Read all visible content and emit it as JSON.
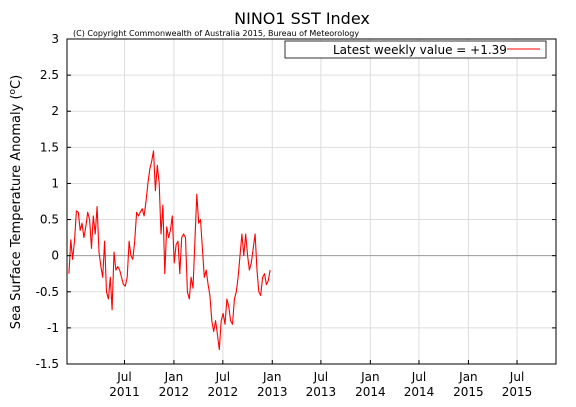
{
  "chart_data": {
    "type": "line",
    "title": "NINO1 SST Index",
    "copyright": "(C) Copyright Commonwealth of Australia 2015, Bureau of Meteorology",
    "ylabel": "Sea Surface Temperature Anomaly (°C)",
    "ylabel_main": "Sea Surface Temperature Anomaly (",
    "ylabel_unit": "C)",
    "ylabel_degree": "o",
    "xlabel": "",
    "ylim": [
      -1.5,
      3
    ],
    "y_ticks": [
      -1.5,
      -1,
      -0.5,
      0,
      0.5,
      1,
      1.5,
      2,
      2.5,
      3
    ],
    "y_tick_labels": [
      "-1.5",
      "-1",
      "-0.5",
      "0",
      "0.5",
      "1",
      "1.5",
      "2",
      "2.5",
      "3"
    ],
    "x_range": [
      "2010-11-29",
      "2015-11-23"
    ],
    "x_ticks": [
      {
        "date": "2011-07-01",
        "month": "Jul",
        "year": "2011"
      },
      {
        "date": "2012-01-01",
        "month": "Jan",
        "year": "2012"
      },
      {
        "date": "2012-07-01",
        "month": "Jul",
        "year": "2012"
      },
      {
        "date": "2013-01-01",
        "month": "Jan",
        "year": "2013"
      },
      {
        "date": "2013-07-01",
        "month": "Jul",
        "year": "2013"
      },
      {
        "date": "2014-01-01",
        "month": "Jan",
        "year": "2014"
      },
      {
        "date": "2014-07-01",
        "month": "Jul",
        "year": "2014"
      },
      {
        "date": "2015-01-01",
        "month": "Jan",
        "year": "2015"
      },
      {
        "date": "2015-07-01",
        "month": "Jul",
        "year": "2015"
      }
    ],
    "grid": true,
    "legend_position": "top-right",
    "series": [
      {
        "name": "Latest weekly value = +1.39",
        "color": "#ff0000",
        "points": [
          [
            "2010-12-06",
            -0.25
          ],
          [
            "2010-12-13",
            0.22
          ],
          [
            "2010-12-20",
            -0.05
          ],
          [
            "2010-12-27",
            0.2
          ],
          [
            "2011-01-03",
            0.62
          ],
          [
            "2011-01-10",
            0.6
          ],
          [
            "2011-01-17",
            0.35
          ],
          [
            "2011-01-24",
            0.45
          ],
          [
            "2011-01-31",
            0.25
          ],
          [
            "2011-02-07",
            0.4
          ],
          [
            "2011-02-14",
            0.6
          ],
          [
            "2011-02-21",
            0.5
          ],
          [
            "2011-02-28",
            0.1
          ],
          [
            "2011-03-07",
            0.55
          ],
          [
            "2011-03-14",
            0.3
          ],
          [
            "2011-03-21",
            0.68
          ],
          [
            "2011-03-28",
            0.05
          ],
          [
            "2011-04-04",
            -0.15
          ],
          [
            "2011-04-11",
            -0.3
          ],
          [
            "2011-04-18",
            0.2
          ],
          [
            "2011-04-25",
            -0.5
          ],
          [
            "2011-05-02",
            -0.6
          ],
          [
            "2011-05-09",
            -0.3
          ],
          [
            "2011-05-16",
            -0.75
          ],
          [
            "2011-05-23",
            0.05
          ],
          [
            "2011-05-30",
            -0.2
          ],
          [
            "2011-06-06",
            -0.15
          ],
          [
            "2011-06-13",
            -0.2
          ],
          [
            "2011-06-20",
            -0.3
          ],
          [
            "2011-06-27",
            -0.4
          ],
          [
            "2011-07-04",
            -0.42
          ],
          [
            "2011-07-11",
            -0.3
          ],
          [
            "2011-07-18",
            0.2
          ],
          [
            "2011-07-25",
            0.0
          ],
          [
            "2011-08-01",
            -0.05
          ],
          [
            "2011-08-08",
            0.2
          ],
          [
            "2011-08-15",
            0.6
          ],
          [
            "2011-08-22",
            0.55
          ],
          [
            "2011-08-29",
            0.6
          ],
          [
            "2011-09-05",
            0.65
          ],
          [
            "2011-09-12",
            0.55
          ],
          [
            "2011-09-19",
            0.75
          ],
          [
            "2011-09-26",
            1.0
          ],
          [
            "2011-10-03",
            1.2
          ],
          [
            "2011-10-10",
            1.3
          ],
          [
            "2011-10-17",
            1.45
          ],
          [
            "2011-10-24",
            0.9
          ],
          [
            "2011-10-31",
            1.25
          ],
          [
            "2011-11-07",
            1.0
          ],
          [
            "2011-11-14",
            0.3
          ],
          [
            "2011-11-21",
            0.7
          ],
          [
            "2011-11-28",
            -0.25
          ],
          [
            "2011-12-05",
            0.4
          ],
          [
            "2011-12-12",
            0.25
          ],
          [
            "2011-12-19",
            0.35
          ],
          [
            "2011-12-26",
            0.55
          ],
          [
            "2012-01-02",
            -0.1
          ],
          [
            "2012-01-09",
            0.15
          ],
          [
            "2012-01-16",
            0.2
          ],
          [
            "2012-01-23",
            -0.25
          ],
          [
            "2012-01-30",
            0.25
          ],
          [
            "2012-02-06",
            0.3
          ],
          [
            "2012-02-13",
            0.25
          ],
          [
            "2012-02-20",
            -0.5
          ],
          [
            "2012-02-27",
            -0.6
          ],
          [
            "2012-03-05",
            -0.3
          ],
          [
            "2012-03-12",
            -0.45
          ],
          [
            "2012-03-19",
            0.2
          ],
          [
            "2012-03-26",
            0.85
          ],
          [
            "2012-04-02",
            0.45
          ],
          [
            "2012-04-09",
            0.5
          ],
          [
            "2012-04-16",
            0.1
          ],
          [
            "2012-04-23",
            -0.3
          ],
          [
            "2012-04-30",
            -0.2
          ],
          [
            "2012-05-07",
            -0.4
          ],
          [
            "2012-05-14",
            -0.55
          ],
          [
            "2012-05-21",
            -0.9
          ],
          [
            "2012-05-28",
            -1.05
          ],
          [
            "2012-06-04",
            -0.9
          ],
          [
            "2012-06-11",
            -1.1
          ],
          [
            "2012-06-18",
            -1.3
          ],
          [
            "2012-06-25",
            -0.9
          ],
          [
            "2012-07-02",
            -0.8
          ],
          [
            "2012-07-09",
            -0.95
          ],
          [
            "2012-07-16",
            -0.6
          ],
          [
            "2012-07-23",
            -0.7
          ],
          [
            "2012-07-30",
            -0.9
          ],
          [
            "2012-08-06",
            -0.95
          ],
          [
            "2012-08-13",
            -0.6
          ],
          [
            "2012-08-20",
            -0.5
          ],
          [
            "2012-08-27",
            -0.3
          ],
          [
            "2012-09-03",
            0.0
          ],
          [
            "2012-09-10",
            0.3
          ],
          [
            "2012-09-17",
            0.0
          ],
          [
            "2012-09-24",
            0.3
          ],
          [
            "2012-10-01",
            0.0
          ],
          [
            "2012-10-08",
            -0.2
          ],
          [
            "2012-10-15",
            -0.1
          ],
          [
            "2012-10-22",
            0.1
          ],
          [
            "2012-10-29",
            0.3
          ],
          [
            "2012-11-05",
            -0.2
          ],
          [
            "2012-11-12",
            -0.5
          ],
          [
            "2012-11-19",
            -0.55
          ],
          [
            "2012-11-26",
            -0.3
          ],
          [
            "2012-12-03",
            -0.25
          ],
          [
            "2012-12-10",
            -0.4
          ],
          [
            "2012-12-17",
            -0.35
          ],
          [
            "2012-12-24",
            -0.2
          ]
        ]
      }
    ]
  },
  "colors": {
    "axis": "#000000",
    "grid": "#dddddd",
    "zero_line": "#999999",
    "series": "#ff0000"
  }
}
